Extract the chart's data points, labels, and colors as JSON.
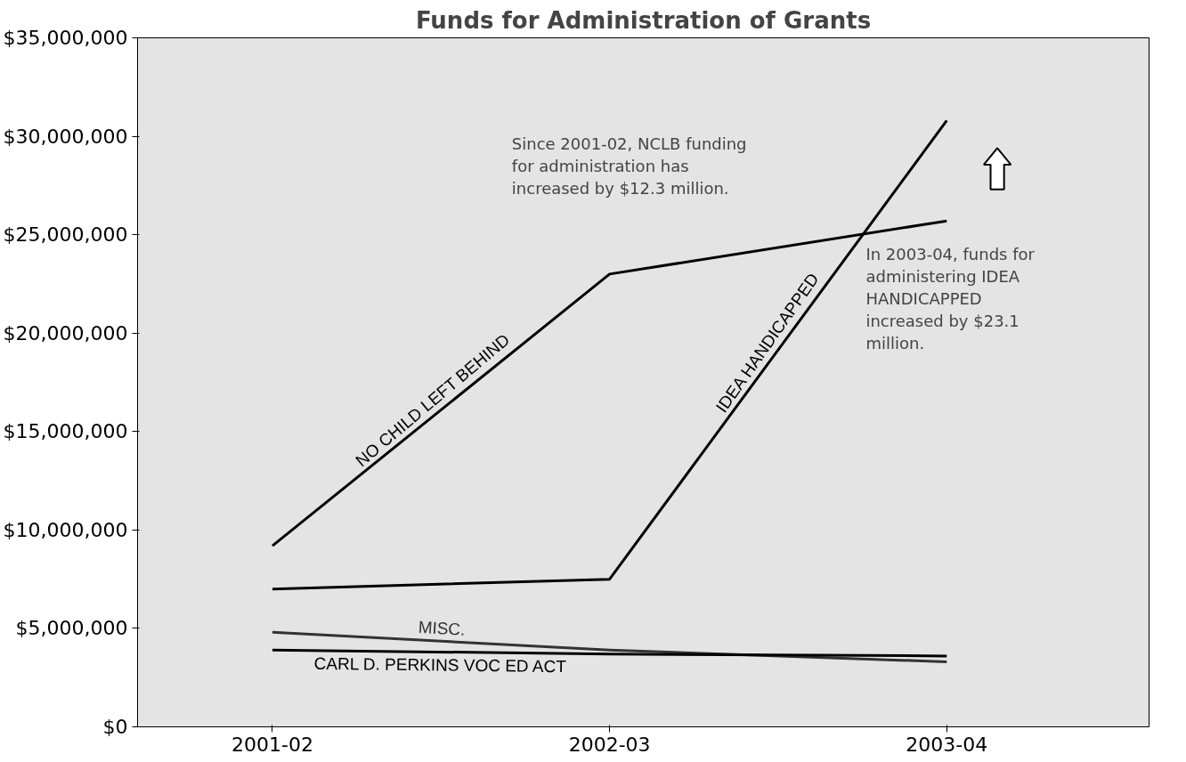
{
  "chart_data": {
    "type": "line",
    "title": "Funds for Administration of Grants",
    "categories": [
      "2001-02",
      "2002-03",
      "2003-04"
    ],
    "series": [
      {
        "name": "NO CHILD LEFT BEHIND",
        "color": "#000000",
        "values": [
          9200000,
          23000000,
          25700000
        ]
      },
      {
        "name": "IDEA HANDICAPPED",
        "color": "#000000",
        "values": [
          7000000,
          7500000,
          30800000
        ]
      },
      {
        "name": "MISC.",
        "color": "#333333",
        "values": [
          4800000,
          3900000,
          3300000
        ]
      },
      {
        "name": "CARL D. PERKINS VOC ED ACT",
        "color": "#000000",
        "values": [
          3900000,
          3700000,
          3600000
        ]
      }
    ],
    "ylim": [
      0,
      35000000
    ],
    "yticks": [
      {
        "value": 0,
        "label": "$0"
      },
      {
        "value": 5000000,
        "label": "$5,000,000"
      },
      {
        "value": 10000000,
        "label": "$10,000,000"
      },
      {
        "value": 15000000,
        "label": "$15,000,000"
      },
      {
        "value": 20000000,
        "label": "$20,000,000"
      },
      {
        "value": 25000000,
        "label": "$25,000,000"
      },
      {
        "value": 30000000,
        "label": "$30,000,000"
      },
      {
        "value": 35000000,
        "label": "$35,000,000"
      }
    ],
    "grid": false,
    "marker": "none",
    "line_style": "solid",
    "annotations": [
      "Since 2001-02, NCLB funding\nfor administration has\nincreased by $12.3 million.",
      "In 2003-04, funds for\nadministering IDEA\nHANDICAPPED\nincreased by $23.1\nmillion."
    ]
  }
}
